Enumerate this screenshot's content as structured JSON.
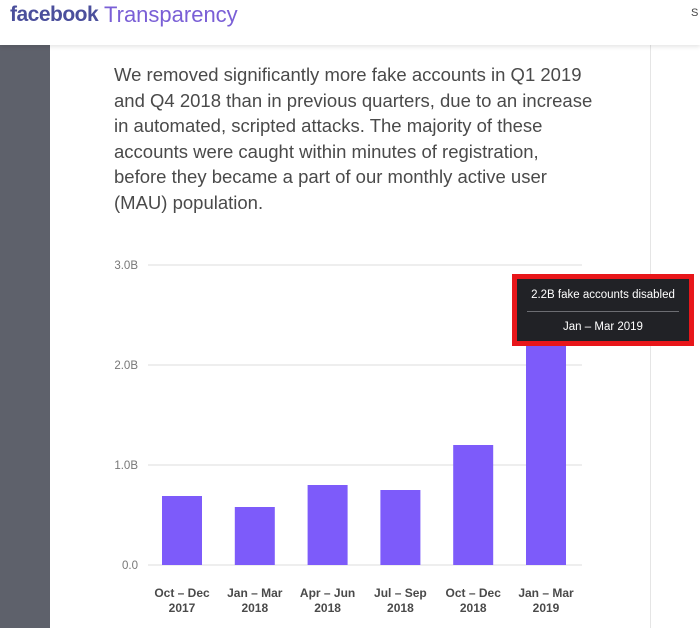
{
  "header": {
    "logo_primary": "facebook",
    "logo_secondary": "Transparency",
    "truncated_nav_text": "S"
  },
  "main": {
    "paragraph": "We removed significantly more fake accounts in Q1 2019 and Q4 2018 than in previous quarters, due to an increase in automated, scripted attacks. The majority of these accounts were caught within minutes of registration, before they became a part of our monthly active user (MAU) population."
  },
  "tooltip": {
    "value_text": "2.2B fake accounts disabled",
    "period_text": "Jan – Mar 2019"
  },
  "colors": {
    "bar": "#7d5bfa",
    "sidebar": "#5e616b",
    "tooltip_bg": "#212226",
    "highlight": "#e8161a"
  },
  "chart_data": {
    "type": "bar",
    "categories": [
      [
        "Oct – Dec",
        "2017"
      ],
      [
        "Jan – Mar",
        "2018"
      ],
      [
        "Apr – Jun",
        "2018"
      ],
      [
        "Jul – Sep",
        "2018"
      ],
      [
        "Oct – Dec",
        "2018"
      ],
      [
        "Jan – Mar",
        "2019"
      ]
    ],
    "values": [
      0.69,
      0.58,
      0.8,
      0.75,
      1.2,
      2.2
    ],
    "unit": "B",
    "yticks": [
      {
        "value": 0,
        "label": "0.0"
      },
      {
        "value": 1,
        "label": "1.0B"
      },
      {
        "value": 2,
        "label": "2.0B"
      },
      {
        "value": 3,
        "label": "3.0B"
      }
    ],
    "ylim": [
      0,
      3
    ],
    "grid": true,
    "highlighted_index": 5
  }
}
